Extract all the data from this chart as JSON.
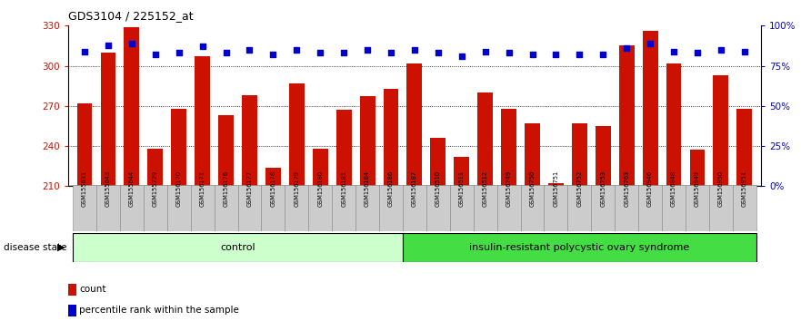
{
  "title": "GDS3104 / 225152_at",
  "samples": [
    "GSM155631",
    "GSM155643",
    "GSM155644",
    "GSM155729",
    "GSM156170",
    "GSM156171",
    "GSM156176",
    "GSM156177",
    "GSM156178",
    "GSM156179",
    "GSM156180",
    "GSM156181",
    "GSM156184",
    "GSM156186",
    "GSM156187",
    "GSM156510",
    "GSM156511",
    "GSM156512",
    "GSM156749",
    "GSM156750",
    "GSM156751",
    "GSM156752",
    "GSM156753",
    "GSM156763",
    "GSM156946",
    "GSM156948",
    "GSM156949",
    "GSM156950",
    "GSM156951"
  ],
  "bar_values": [
    272,
    310,
    329,
    238,
    268,
    307,
    263,
    278,
    224,
    287,
    238,
    267,
    277,
    283,
    302,
    246,
    232,
    280,
    268,
    257,
    212,
    257,
    255,
    315,
    326,
    302,
    237,
    293,
    268
  ],
  "percentile_values": [
    84,
    88,
    89,
    82,
    83,
    87,
    83,
    85,
    82,
    85,
    83,
    83,
    85,
    83,
    85,
    83,
    81,
    84,
    83,
    82,
    82,
    82,
    82,
    86,
    89,
    84,
    83,
    85,
    84
  ],
  "control_count": 14,
  "ylim_left": [
    210,
    330
  ],
  "ylim_right": [
    0,
    100
  ],
  "yticks_left": [
    210,
    240,
    270,
    300,
    330
  ],
  "yticks_right": [
    0,
    25,
    50,
    75,
    100
  ],
  "ytick_labels_right": [
    "0%",
    "25%",
    "50%",
    "75%",
    "100%"
  ],
  "bar_color": "#cc1100",
  "dot_color": "#0000cc",
  "bg_color": "#ffffff",
  "control_label": "control",
  "disease_label": "insulin-resistant polycystic ovary syndrome",
  "disease_state_label": "disease state",
  "legend_bar": "count",
  "legend_dot": "percentile rank within the sample",
  "control_bg": "#ccffcc",
  "disease_bg": "#44dd44",
  "grid_color": "#000000",
  "axis_color_left": "#cc1100",
  "axis_color_right": "#0000cc",
  "tick_label_bg": "#cccccc",
  "spine_color": "#000000"
}
